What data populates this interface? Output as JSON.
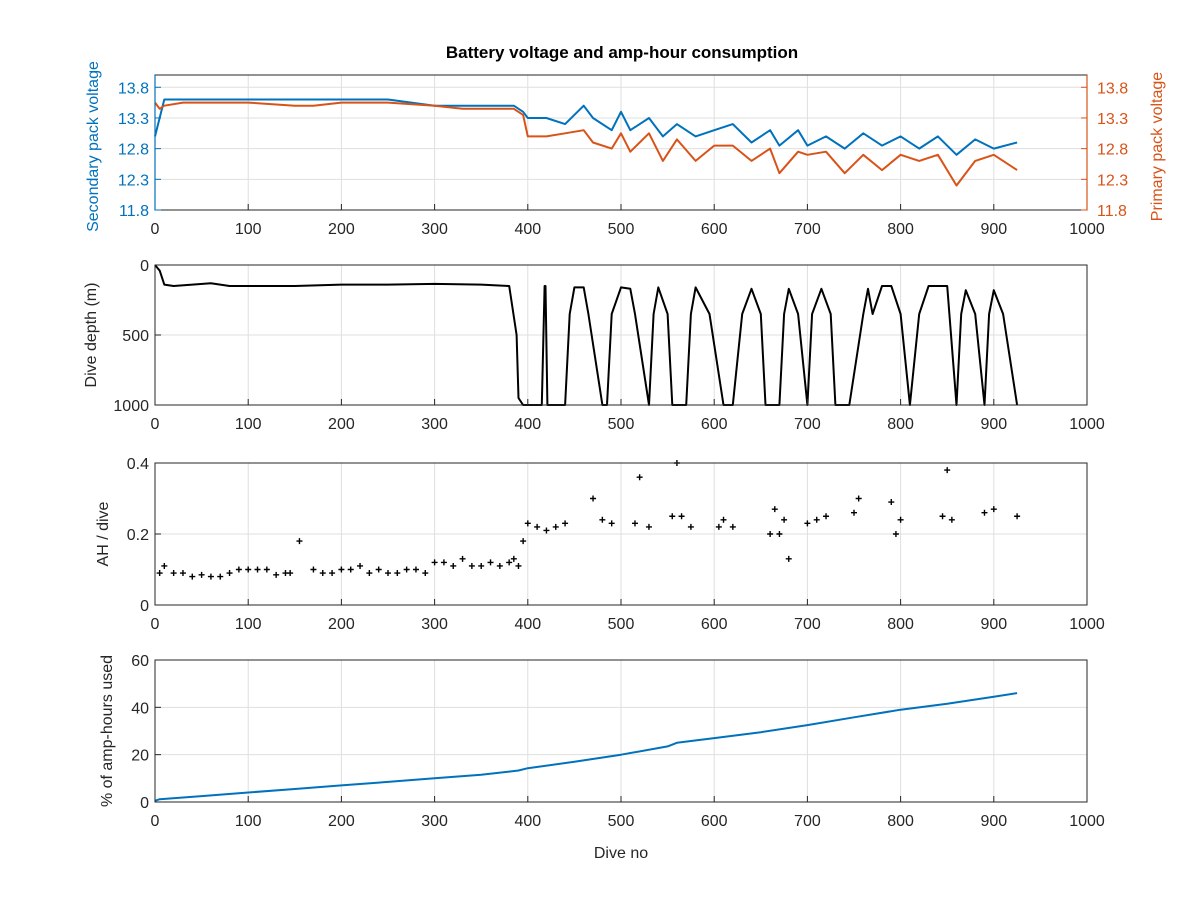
{
  "chart_data": [
    {
      "type": "line",
      "title": "Battery voltage and amp-hour consumption",
      "xlim": [
        0,
        1000
      ],
      "x_ticks": [
        "0",
        "100",
        "200",
        "300",
        "400",
        "500",
        "600",
        "700",
        "800",
        "900",
        "1000"
      ],
      "ylabel_left": "Secondary pack voltage",
      "ylabel_right": "Primary pack voltage",
      "ylim": [
        11.8,
        14.0
      ],
      "y_ticks": [
        "11.8",
        "12.3",
        "12.8",
        "13.3",
        "13.8"
      ],
      "grid": true,
      "colors": {
        "secondary": "#0072bd",
        "primary": "#d95319"
      },
      "series": [
        {
          "axis": "left",
          "x": [
            0,
            10,
            30,
            50,
            80,
            100,
            150,
            170,
            200,
            250,
            300,
            330,
            360,
            385,
            395,
            400,
            420,
            440,
            460,
            470,
            490,
            500,
            510,
            530,
            545,
            560,
            580,
            600,
            620,
            640,
            660,
            670,
            690,
            700,
            720,
            740,
            760,
            780,
            800,
            820,
            840,
            860,
            880,
            900,
            925
          ],
          "y": [
            13.0,
            13.6,
            13.6,
            13.6,
            13.6,
            13.6,
            13.6,
            13.6,
            13.6,
            13.6,
            13.5,
            13.5,
            13.5,
            13.5,
            13.4,
            13.3,
            13.3,
            13.2,
            13.5,
            13.3,
            13.1,
            13.4,
            13.1,
            13.3,
            13.0,
            13.2,
            13.0,
            13.1,
            13.2,
            12.9,
            13.1,
            12.85,
            13.1,
            12.85,
            13.0,
            12.8,
            13.05,
            12.85,
            13.0,
            12.8,
            13.0,
            12.7,
            12.95,
            12.8,
            12.9
          ]
        },
        {
          "axis": "right",
          "x": [
            0,
            5,
            10,
            30,
            50,
            80,
            100,
            150,
            170,
            200,
            250,
            300,
            330,
            360,
            385,
            395,
            400,
            420,
            440,
            460,
            470,
            490,
            500,
            510,
            530,
            545,
            560,
            580,
            600,
            620,
            640,
            660,
            670,
            690,
            700,
            720,
            740,
            760,
            780,
            800,
            820,
            840,
            860,
            880,
            900,
            925
          ],
          "y": [
            13.55,
            13.45,
            13.5,
            13.55,
            13.55,
            13.55,
            13.55,
            13.5,
            13.5,
            13.55,
            13.55,
            13.5,
            13.45,
            13.45,
            13.45,
            13.35,
            13.0,
            13.0,
            13.05,
            13.1,
            12.9,
            12.8,
            13.05,
            12.75,
            13.05,
            12.6,
            12.95,
            12.6,
            12.85,
            12.85,
            12.6,
            12.8,
            12.4,
            12.75,
            12.7,
            12.75,
            12.4,
            12.7,
            12.45,
            12.7,
            12.6,
            12.7,
            12.2,
            12.6,
            12.7,
            12.45
          ]
        }
      ]
    },
    {
      "type": "line",
      "title": "",
      "ylabel": "Dive depth (m)",
      "xlim": [
        0,
        1000
      ],
      "x_ticks": [
        "0",
        "100",
        "200",
        "300",
        "400",
        "500",
        "600",
        "700",
        "800",
        "900",
        "1000"
      ],
      "ylim": [
        0,
        1000
      ],
      "y_reversed": true,
      "y_ticks": [
        "0",
        "500",
        "1000"
      ],
      "grid": true,
      "color": "#000000",
      "series": [
        {
          "x": [
            0,
            5,
            10,
            20,
            40,
            60,
            80,
            100,
            150,
            200,
            250,
            300,
            350,
            380,
            388,
            390,
            395,
            400,
            415,
            418,
            419,
            421,
            422,
            440,
            445,
            450,
            460,
            465,
            480,
            485,
            490,
            500,
            510,
            515,
            530,
            535,
            540,
            550,
            555,
            570,
            575,
            580,
            595,
            610,
            620,
            630,
            640,
            650,
            655,
            670,
            675,
            680,
            690,
            700,
            705,
            715,
            725,
            730,
            745,
            760,
            765,
            770,
            780,
            790,
            800,
            810,
            820,
            830,
            840,
            850,
            860,
            865,
            870,
            880,
            890,
            895,
            900,
            910,
            925
          ],
          "y": [
            0,
            40,
            140,
            150,
            140,
            130,
            150,
            150,
            150,
            140,
            140,
            135,
            140,
            150,
            500,
            950,
            1000,
            1000,
            1000,
            150,
            150,
            1000,
            1000,
            1000,
            350,
            160,
            160,
            350,
            1000,
            1000,
            350,
            160,
            170,
            350,
            1000,
            350,
            160,
            350,
            1000,
            1000,
            350,
            160,
            350,
            1000,
            1000,
            350,
            170,
            350,
            1000,
            1000,
            350,
            170,
            350,
            1000,
            350,
            170,
            350,
            1000,
            1000,
            350,
            170,
            350,
            150,
            150,
            350,
            1000,
            350,
            150,
            150,
            150,
            1000,
            350,
            180,
            350,
            1000,
            350,
            180,
            350,
            1000
          ]
        }
      ]
    },
    {
      "type": "scatter",
      "title": "",
      "ylabel": "AH / dive",
      "xlim": [
        0,
        1000
      ],
      "x_ticks": [
        "0",
        "100",
        "200",
        "300",
        "400",
        "500",
        "600",
        "700",
        "800",
        "900",
        "1000"
      ],
      "ylim": [
        0,
        0.4
      ],
      "y_ticks": [
        "0",
        "0.2",
        "0.4"
      ],
      "grid": true,
      "color": "#000000",
      "series": [
        {
          "x": [
            5,
            10,
            20,
            30,
            40,
            50,
            60,
            70,
            80,
            90,
            100,
            110,
            120,
            130,
            140,
            145,
            155,
            170,
            180,
            190,
            200,
            210,
            220,
            230,
            240,
            250,
            260,
            270,
            280,
            290,
            300,
            310,
            320,
            330,
            340,
            350,
            360,
            370,
            380,
            385,
            390,
            395,
            400,
            410,
            420,
            430,
            440,
            470,
            480,
            490,
            515,
            520,
            530,
            555,
            560,
            565,
            575,
            605,
            610,
            620,
            660,
            665,
            670,
            675,
            680,
            700,
            710,
            720,
            750,
            755,
            790,
            795,
            800,
            845,
            850,
            855,
            890,
            900,
            925
          ],
          "y": [
            0.09,
            0.11,
            0.09,
            0.09,
            0.08,
            0.085,
            0.08,
            0.08,
            0.09,
            0.1,
            0.1,
            0.1,
            0.1,
            0.085,
            0.09,
            0.09,
            0.18,
            0.1,
            0.09,
            0.09,
            0.1,
            0.1,
            0.11,
            0.09,
            0.1,
            0.09,
            0.09,
            0.1,
            0.1,
            0.09,
            0.12,
            0.12,
            0.11,
            0.13,
            0.11,
            0.11,
            0.12,
            0.11,
            0.12,
            0.13,
            0.11,
            0.18,
            0.23,
            0.22,
            0.21,
            0.22,
            0.23,
            0.3,
            0.24,
            0.23,
            0.23,
            0.36,
            0.22,
            0.25,
            0.4,
            0.25,
            0.22,
            0.22,
            0.24,
            0.22,
            0.2,
            0.27,
            0.2,
            0.24,
            0.13,
            0.23,
            0.24,
            0.25,
            0.26,
            0.3,
            0.29,
            0.2,
            0.24,
            0.25,
            0.38,
            0.24,
            0.26,
            0.27,
            0.25
          ]
        }
      ]
    },
    {
      "type": "line",
      "title": "",
      "xlabel": "Dive no",
      "ylabel": "% of amp-hours used",
      "xlim": [
        0,
        1000
      ],
      "x_ticks": [
        "0",
        "100",
        "200",
        "300",
        "400",
        "500",
        "600",
        "700",
        "800",
        "900",
        "1000"
      ],
      "ylim": [
        0,
        60
      ],
      "y_ticks": [
        "0",
        "20",
        "40",
        "60"
      ],
      "grid": true,
      "color": "#0072bd",
      "series": [
        {
          "x": [
            0,
            5,
            50,
            100,
            150,
            200,
            250,
            300,
            350,
            390,
            400,
            450,
            500,
            550,
            560,
            600,
            650,
            700,
            750,
            800,
            850,
            900,
            925
          ],
          "y": [
            0.5,
            1.2,
            2.5,
            4.0,
            5.5,
            7.0,
            8.5,
            10.0,
            11.5,
            13.3,
            14.3,
            17.0,
            20.0,
            23.5,
            25.0,
            27.0,
            29.5,
            32.5,
            35.8,
            39.0,
            41.5,
            44.5,
            46.0
          ]
        }
      ]
    }
  ]
}
